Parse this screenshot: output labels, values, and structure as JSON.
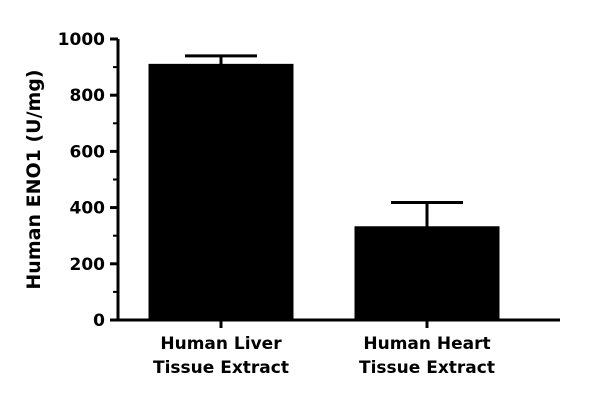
{
  "chart_data": {
    "type": "bar",
    "categories": [
      [
        "Human Liver",
        "Tissue Extract"
      ],
      [
        "Human Heart",
        "Tissue Extract"
      ]
    ],
    "values": [
      908,
      330
    ],
    "error": [
      32,
      88
    ],
    "ylabel": "Human ENO1 (U/mg)",
    "xlabel": "",
    "ylim": [
      0,
      1000
    ],
    "yticks": [
      0,
      200,
      400,
      600,
      800,
      1000
    ],
    "ytick_labels": [
      "0",
      "200",
      "400",
      "600",
      "800",
      "1000"
    ],
    "grid": false,
    "bar_color": "#000000"
  }
}
